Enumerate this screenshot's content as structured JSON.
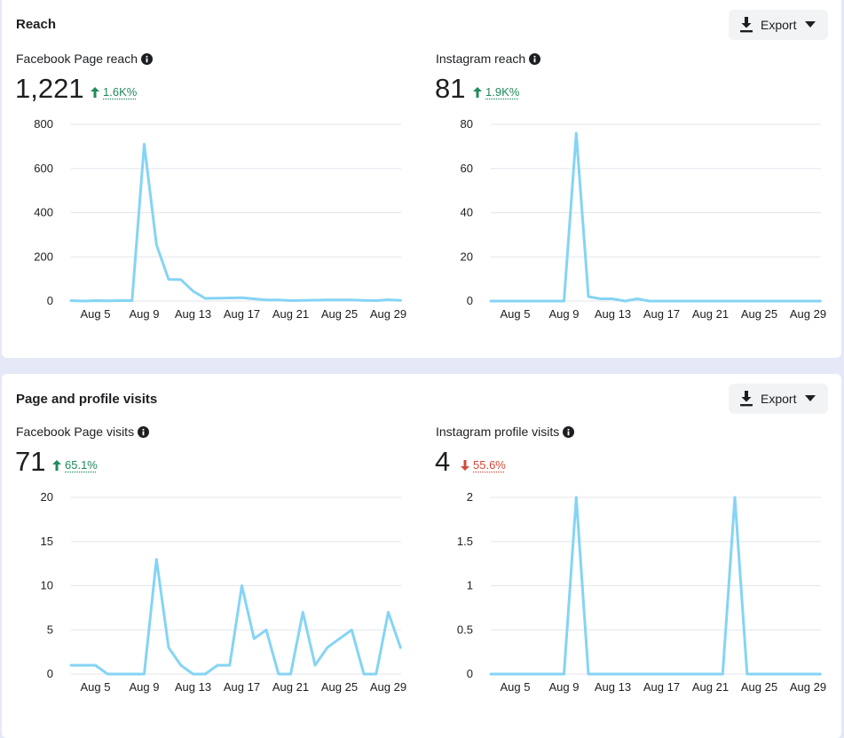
{
  "reach_card": {
    "title": "Reach",
    "export_label": "Export",
    "panels": [
      {
        "title": "Facebook Page reach",
        "value": "1,221",
        "delta": "1.6K%",
        "direction": "up"
      },
      {
        "title": "Instagram reach",
        "value": "81",
        "delta": "1.9K%",
        "direction": "up"
      }
    ]
  },
  "visits_card": {
    "title": "Page and profile visits",
    "export_label": "Export",
    "panels": [
      {
        "title": "Facebook Page visits",
        "value": "71",
        "delta": "65.1%",
        "direction": "up"
      },
      {
        "title": "Instagram profile visits",
        "value": "4",
        "delta": "55.6%",
        "direction": "down"
      }
    ]
  },
  "colors": {
    "line": "#85d4f5",
    "up": "#1f8a5a",
    "down": "#d14b3a",
    "grid": "#e4e6eb"
  },
  "icons": {
    "export": "download-icon",
    "dropdown": "caret-down-icon",
    "info": "info-icon"
  },
  "chart_data": [
    {
      "type": "line",
      "title": "Facebook Page reach",
      "x": [
        "Aug 3",
        "Aug 4",
        "Aug 5",
        "Aug 6",
        "Aug 7",
        "Aug 8",
        "Aug 9",
        "Aug 10",
        "Aug 11",
        "Aug 12",
        "Aug 13",
        "Aug 14",
        "Aug 15",
        "Aug 16",
        "Aug 17",
        "Aug 18",
        "Aug 19",
        "Aug 20",
        "Aug 21",
        "Aug 22",
        "Aug 23",
        "Aug 24",
        "Aug 25",
        "Aug 26",
        "Aug 27",
        "Aug 28",
        "Aug 29",
        "Aug 30"
      ],
      "x_ticks": [
        "Aug 5",
        "Aug 9",
        "Aug 13",
        "Aug 17",
        "Aug 21",
        "Aug 25",
        "Aug 29"
      ],
      "values": [
        2,
        0,
        2,
        1,
        2,
        2,
        710,
        255,
        98,
        97,
        45,
        12,
        13,
        14,
        15,
        10,
        5,
        5,
        2,
        3,
        4,
        5,
        5,
        5,
        3,
        2,
        6,
        3
      ],
      "ylim": [
        0,
        800
      ],
      "yticks": [
        "0",
        "200",
        "400",
        "600",
        "800"
      ]
    },
    {
      "type": "line",
      "title": "Instagram reach",
      "x": [
        "Aug 3",
        "Aug 4",
        "Aug 5",
        "Aug 6",
        "Aug 7",
        "Aug 8",
        "Aug 9",
        "Aug 10",
        "Aug 11",
        "Aug 12",
        "Aug 13",
        "Aug 14",
        "Aug 15",
        "Aug 16",
        "Aug 17",
        "Aug 18",
        "Aug 19",
        "Aug 20",
        "Aug 21",
        "Aug 22",
        "Aug 23",
        "Aug 24",
        "Aug 25",
        "Aug 26",
        "Aug 27",
        "Aug 28",
        "Aug 29",
        "Aug 30"
      ],
      "x_ticks": [
        "Aug 5",
        "Aug 9",
        "Aug 13",
        "Aug 17",
        "Aug 21",
        "Aug 25",
        "Aug 29"
      ],
      "values": [
        0,
        0,
        0,
        0,
        0,
        0,
        0,
        76,
        2,
        1,
        1,
        0,
        1,
        0,
        0,
        0,
        0,
        0,
        0,
        0,
        0,
        0,
        0,
        0,
        0,
        0,
        0,
        0
      ],
      "ylim": [
        0,
        80
      ],
      "yticks": [
        "0",
        "20",
        "40",
        "60",
        "80"
      ]
    },
    {
      "type": "line",
      "title": "Facebook Page visits",
      "x": [
        "Aug 3",
        "Aug 4",
        "Aug 5",
        "Aug 6",
        "Aug 7",
        "Aug 8",
        "Aug 9",
        "Aug 10",
        "Aug 11",
        "Aug 12",
        "Aug 13",
        "Aug 14",
        "Aug 15",
        "Aug 16",
        "Aug 17",
        "Aug 18",
        "Aug 19",
        "Aug 20",
        "Aug 21",
        "Aug 22",
        "Aug 23",
        "Aug 24",
        "Aug 25",
        "Aug 26",
        "Aug 27",
        "Aug 28",
        "Aug 29",
        "Aug 30"
      ],
      "x_ticks": [
        "Aug 5",
        "Aug 9",
        "Aug 13",
        "Aug 17",
        "Aug 21",
        "Aug 25",
        "Aug 29"
      ],
      "values": [
        1,
        1,
        1,
        0,
        0,
        0,
        0,
        13,
        3,
        1,
        0,
        0,
        1,
        1,
        10,
        4,
        5,
        0,
        0,
        7,
        1,
        3,
        4,
        5,
        0,
        0,
        7,
        3
      ],
      "ylim": [
        0,
        20
      ],
      "yticks": [
        "0",
        "5",
        "10",
        "15",
        "20"
      ]
    },
    {
      "type": "line",
      "title": "Instagram profile visits",
      "x": [
        "Aug 3",
        "Aug 4",
        "Aug 5",
        "Aug 6",
        "Aug 7",
        "Aug 8",
        "Aug 9",
        "Aug 10",
        "Aug 11",
        "Aug 12",
        "Aug 13",
        "Aug 14",
        "Aug 15",
        "Aug 16",
        "Aug 17",
        "Aug 18",
        "Aug 19",
        "Aug 20",
        "Aug 21",
        "Aug 22",
        "Aug 23",
        "Aug 24",
        "Aug 25",
        "Aug 26",
        "Aug 27",
        "Aug 28",
        "Aug 29",
        "Aug 30"
      ],
      "x_ticks": [
        "Aug 5",
        "Aug 9",
        "Aug 13",
        "Aug 17",
        "Aug 21",
        "Aug 25",
        "Aug 29"
      ],
      "values": [
        0,
        0,
        0,
        0,
        0,
        0,
        0,
        2,
        0,
        0,
        0,
        0,
        0,
        0,
        0,
        0,
        0,
        0,
        0,
        0,
        2,
        0,
        0,
        0,
        0,
        0,
        0,
        0
      ],
      "ylim": [
        0,
        2
      ],
      "yticks": [
        "0",
        "0.5",
        "1",
        "1.5",
        "2"
      ]
    }
  ]
}
